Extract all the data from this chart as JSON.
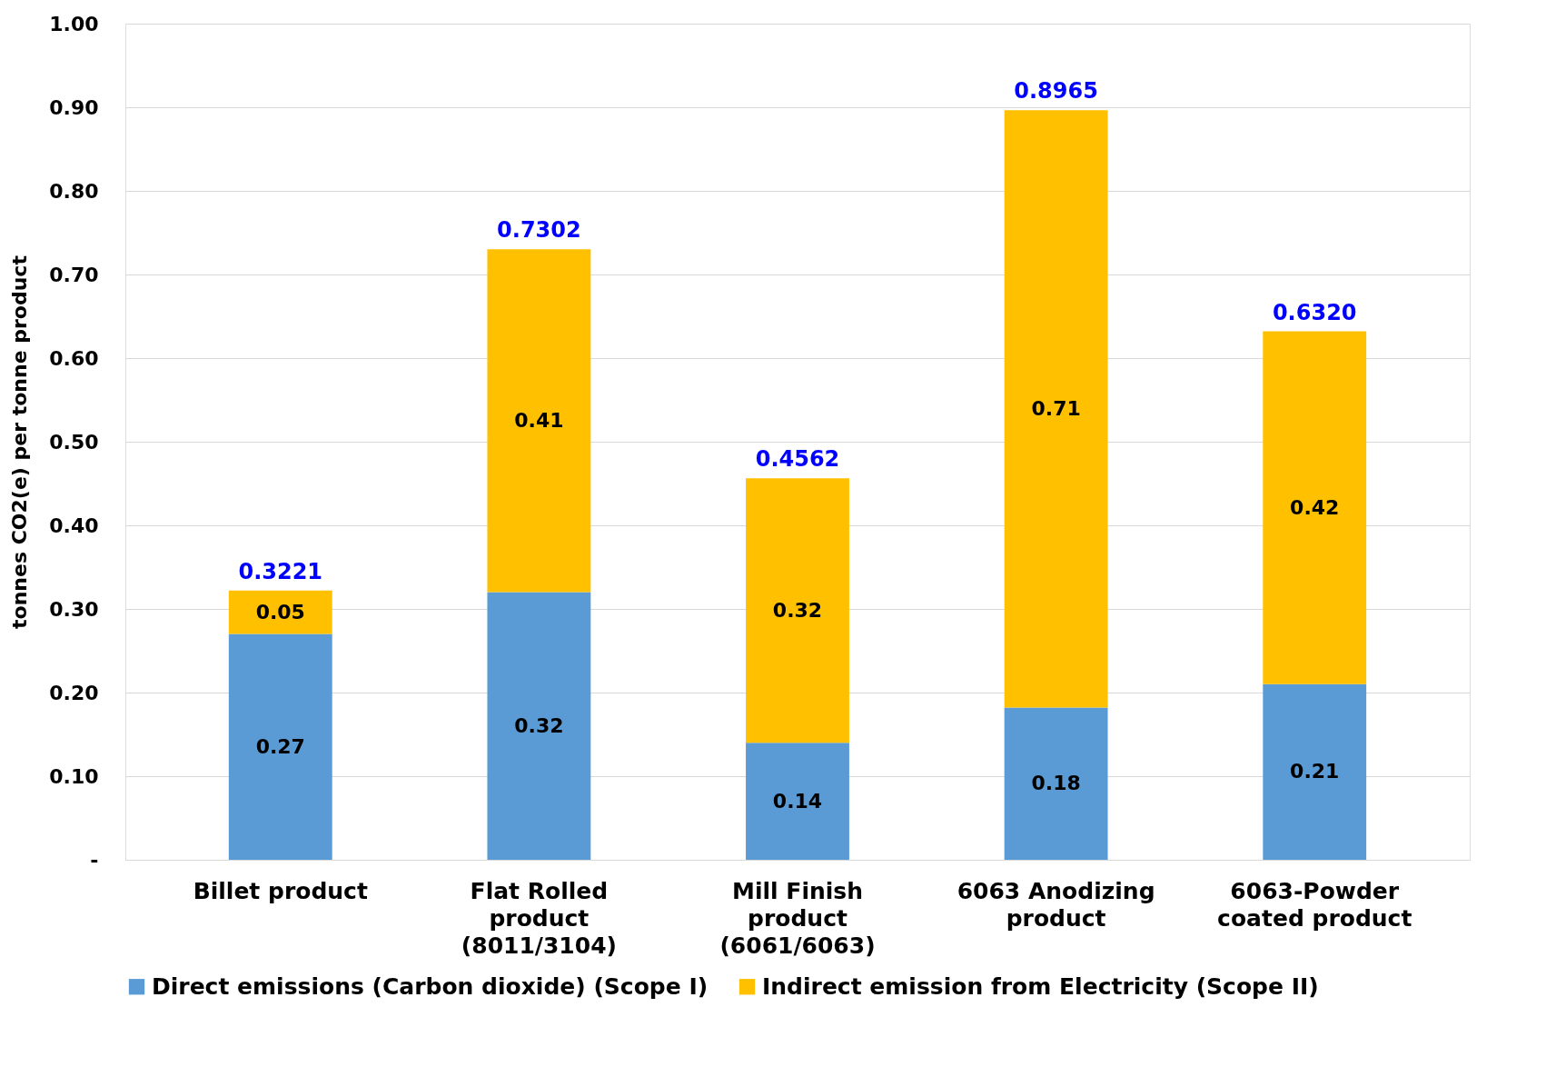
{
  "chart_data": {
    "type": "bar",
    "stacked": true,
    "ylabel": "tonnes CO2(e) per tonne product",
    "categories": [
      "Billet product",
      "Flat Rolled product (8011/3104)",
      "Mill Finish product (6061/6063)",
      "6063 Anodizing product",
      "6063-Powder coated product"
    ],
    "series": [
      {
        "name": "Direct emissions (Carbon dioxide) (Scope I)",
        "color": "#5b9bd5",
        "values": [
          0.27,
          0.32,
          0.14,
          0.182,
          0.21
        ],
        "value_labels": [
          "0.27",
          "0.32",
          "0.14",
          "0.18",
          "0.21"
        ]
      },
      {
        "name": "Indirect emission from Electricity (Scope II)",
        "color": "#ffc000",
        "values": [
          0.0521,
          0.4102,
          0.3162,
          0.7145,
          0.422
        ],
        "value_labels": [
          "0.05",
          "0.41",
          "0.32",
          "0.71",
          "0.42"
        ]
      }
    ],
    "totals": [
      "0.3221",
      "0.7302",
      "0.4562",
      "0.8965",
      "0.6320"
    ],
    "ylim": [
      0,
      1
    ],
    "yticks": [
      {
        "value": 0,
        "label": "-"
      },
      {
        "value": 0.1,
        "label": "0.10"
      },
      {
        "value": 0.2,
        "label": "0.20"
      },
      {
        "value": 0.3,
        "label": "0.30"
      },
      {
        "value": 0.4,
        "label": "0.40"
      },
      {
        "value": 0.5,
        "label": "0.50"
      },
      {
        "value": 0.6,
        "label": "0.60"
      },
      {
        "value": 0.7,
        "label": "0.70"
      },
      {
        "value": 0.8,
        "label": "0.80"
      },
      {
        "value": 0.9,
        "label": "0.90"
      },
      {
        "value": 1,
        "label": "1.00"
      }
    ],
    "grid": "y",
    "legend": "bottom"
  }
}
